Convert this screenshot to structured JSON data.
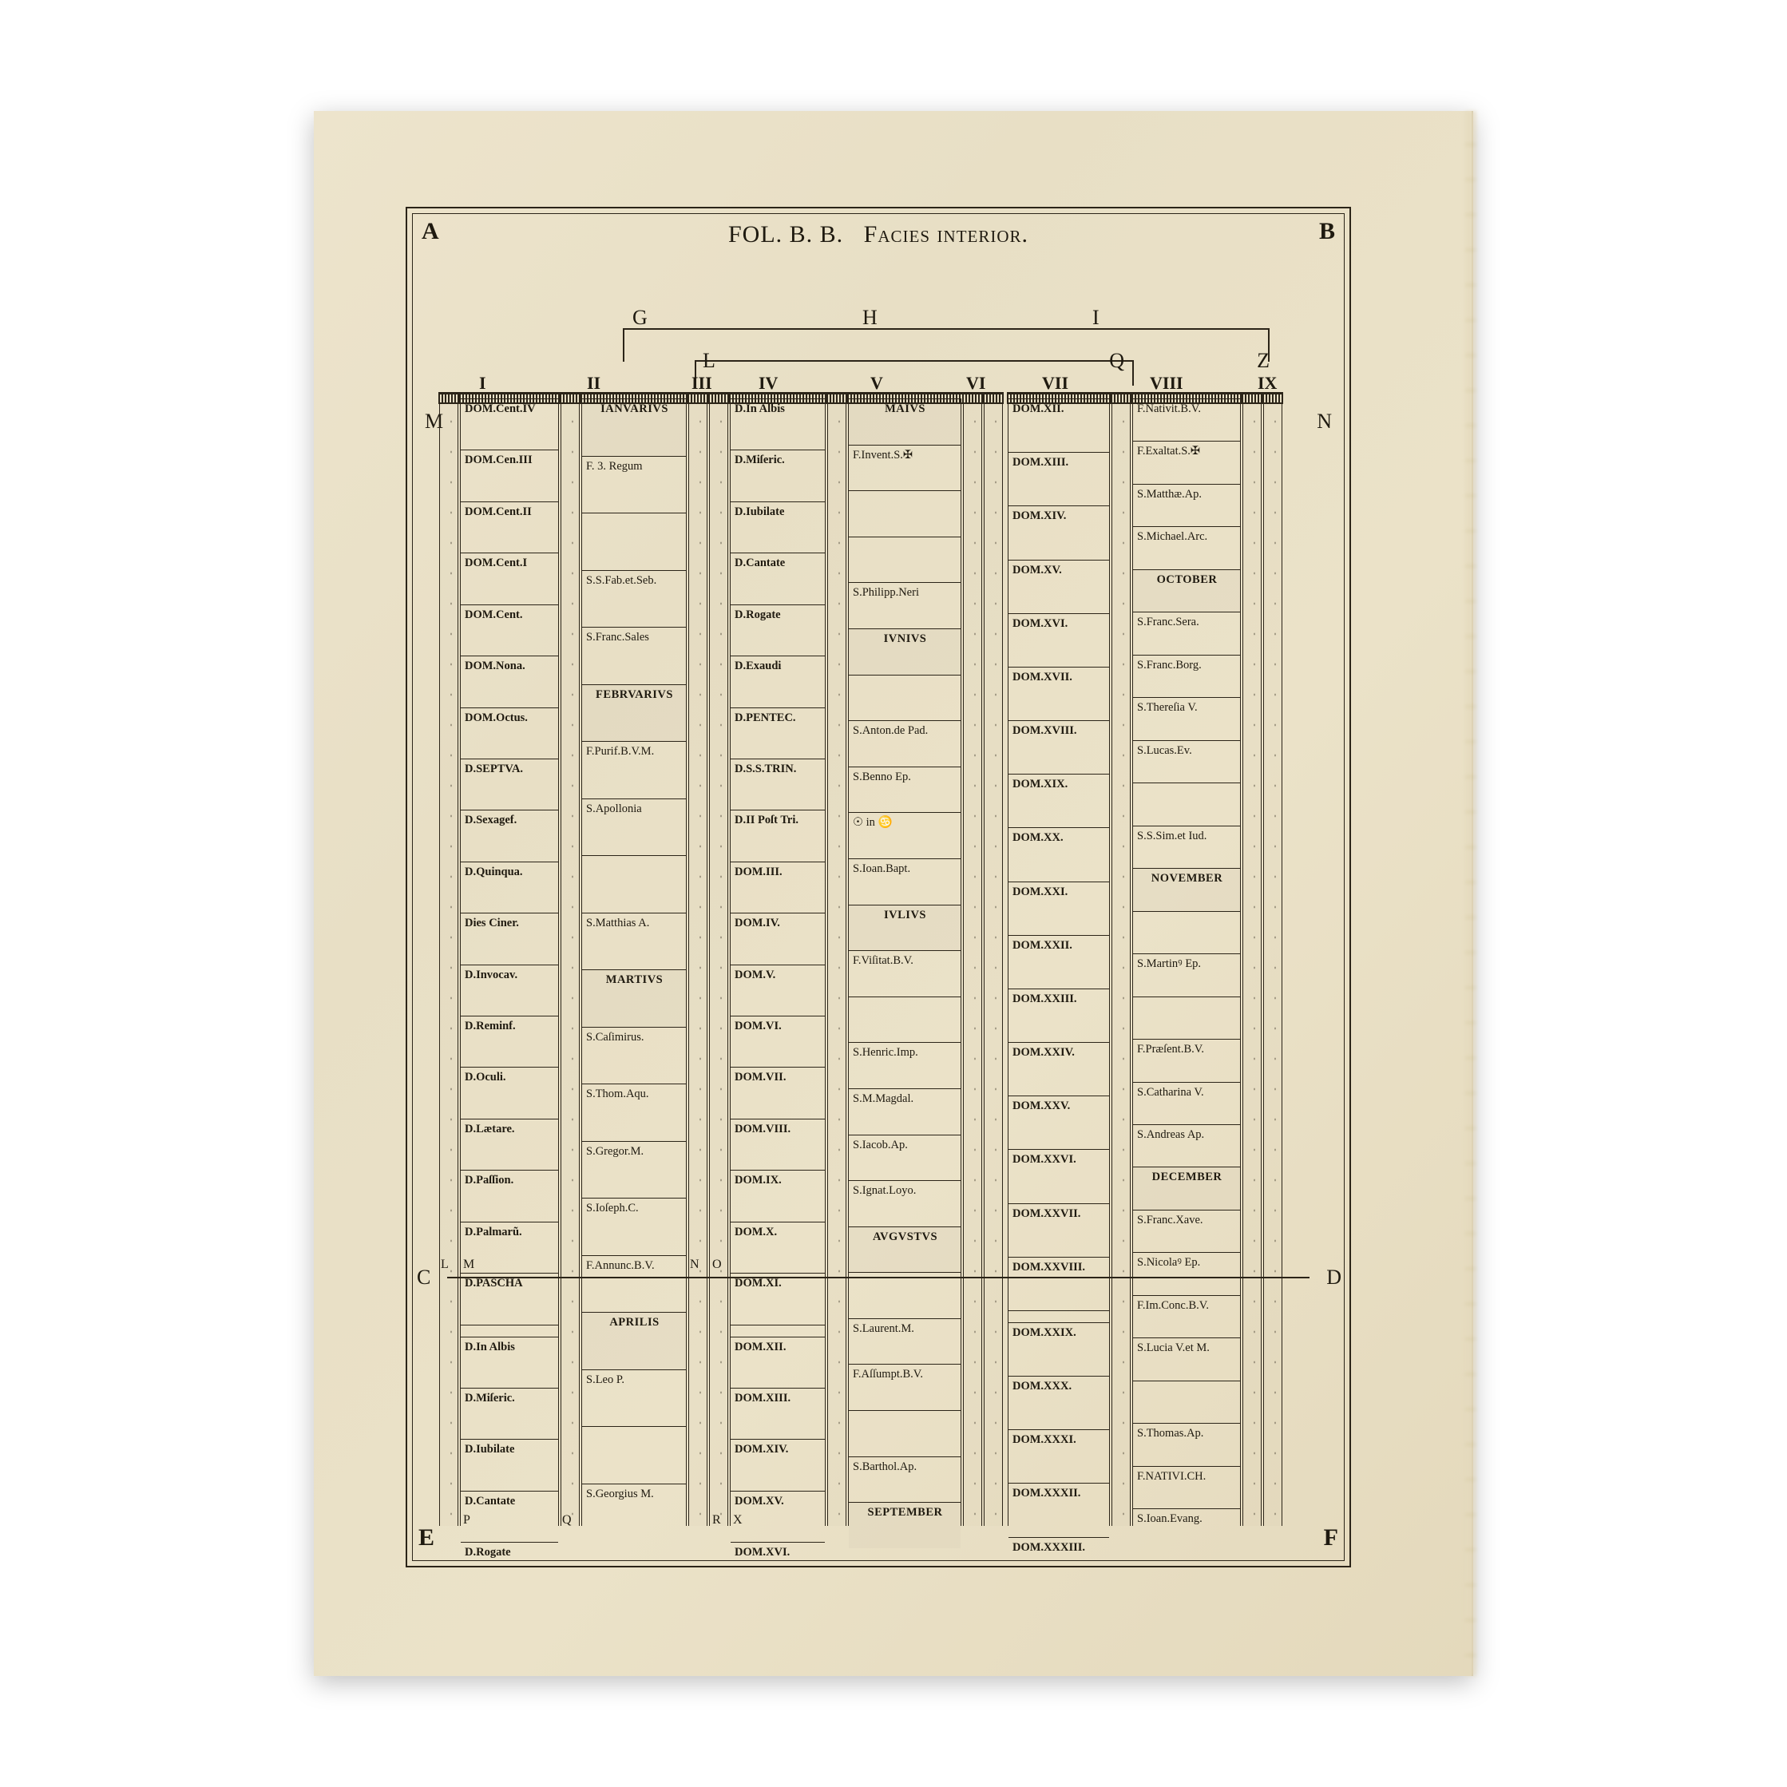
{
  "title_prefix": "FOL. B. B.",
  "title_suffix": "Facies interior.",
  "corners": {
    "A": "A",
    "B": "B",
    "C": "C",
    "D": "D",
    "E": "E",
    "F": "F"
  },
  "marks": {
    "G": "G",
    "H": "H",
    "I": "I",
    "L": "L",
    "Q": "Q",
    "Z": "Z",
    "M": "M",
    "N": "N",
    "P": "P",
    "R": "R",
    "X": "X",
    "smallL": "L",
    "smallM": "M",
    "smallN": "N",
    "smallO": "O"
  },
  "roman": [
    "I",
    "II",
    "III",
    "IV",
    "V",
    "VI",
    "VII",
    "VIII",
    "IX"
  ],
  "col1": [
    "DOM.Cent.IV",
    "DOM.Cen.III",
    "DOM.Cent.II",
    "DOM.Cent.I",
    "DOM.Cent.",
    "DOM.Nona.",
    "DOM.Octus.",
    "D.SEPTVA.",
    "D.Sexagef.",
    "D.Quinqua.",
    "Dies Ciner.",
    "D.Invocav.",
    "D.Reminf.",
    "D.Oculi.",
    "D.Lætare.",
    "D.Paſſion.",
    "D.Palmarũ.",
    "D.PASCHA"
  ],
  "col1_lower": [
    "D.In Albis",
    "D.Miſeric.",
    "D.Iubilate",
    "D.Cantate",
    "D.Rogate"
  ],
  "col2": [
    {
      "t": "IANVARIVS",
      "m": 1
    },
    {
      "t": "F. 3. Regum"
    },
    {
      "t": ""
    },
    {
      "t": "S.S.Fab.et.Seb."
    },
    {
      "t": "S.Franc.Sales"
    },
    {
      "t": "FEBRVARIVS",
      "m": 1
    },
    {
      "t": "F.Purif.B.V.M."
    },
    {
      "t": "S.Apollonia"
    },
    {
      "t": ""
    },
    {
      "t": "S.Matthias A."
    },
    {
      "t": "MARTIVS",
      "m": 1
    },
    {
      "t": "S.Caſimirus."
    },
    {
      "t": "S.Thom.Aqu."
    },
    {
      "t": "S.Gregor.M."
    },
    {
      "t": "S.Ioſeph.C."
    },
    {
      "t": "F.Annunc.B.V."
    },
    {
      "t": "APRILIS",
      "m": 1
    },
    {
      "t": "S.Leo P."
    },
    {
      "t": ""
    },
    {
      "t": "S.Georgius M."
    }
  ],
  "col4": [
    "D.In Albis",
    "D.Miſeric.",
    "D.Iubilate",
    "D.Cantate",
    "D.Rogate",
    "D.Exaudi",
    "D.PENTEC.",
    "D.S.S.TRIN.",
    "D.II Poſt Tri.",
    "DOM.III.",
    "DOM.IV.",
    "DOM.V.",
    "DOM.VI.",
    "DOM.VII.",
    "DOM.VIII.",
    "DOM.IX.",
    "DOM.X.",
    "DOM.XI."
  ],
  "col4_lower": [
    "DOM.XII.",
    "DOM.XIII.",
    "DOM.XIV.",
    "DOM.XV.",
    "DOM.XVI."
  ],
  "col5": [
    {
      "t": "MAIVS",
      "m": 1
    },
    {
      "t": "F.Invent.S.✠"
    },
    {
      "t": ""
    },
    {
      "t": ""
    },
    {
      "t": "S.Philipp.Neri"
    },
    {
      "t": "IVNIVS",
      "m": 1
    },
    {
      "t": ""
    },
    {
      "t": "S.Anton.de Pad."
    },
    {
      "t": "S.Benno Ep."
    },
    {
      "t": "☉ in ♋"
    },
    {
      "t": "S.Ioan.Bapt."
    },
    {
      "t": "IVLIVS",
      "m": 1
    },
    {
      "t": "F.Viſitat.B.V."
    },
    {
      "t": ""
    },
    {
      "t": "S.Henric.Imp."
    },
    {
      "t": "S.M.Magdal."
    },
    {
      "t": "S.Iacob.Ap."
    },
    {
      "t": "S.Ignat.Loyo."
    },
    {
      "t": "AVGVSTVS",
      "m": 1
    },
    {
      "t": ""
    },
    {
      "t": "S.Laurent.M."
    },
    {
      "t": "F.Aſſumpt.B.V."
    },
    {
      "t": ""
    },
    {
      "t": "S.Barthol.Ap."
    },
    {
      "t": "SEPTEMBER",
      "m": 1
    }
  ],
  "col7": [
    "DOM.XII.",
    "DOM.XIII.",
    "DOM.XIV.",
    "DOM.XV.",
    "DOM.XVI.",
    "DOM.XVII.",
    "DOM.XVIII.",
    "DOM.XIX.",
    "DOM.XX.",
    "DOM.XXI.",
    "DOM.XXII.",
    "DOM.XXIII.",
    "DOM.XXIV.",
    "DOM.XXV.",
    "DOM.XXVI.",
    "DOM.XXVII.",
    "DOM.XXVIII."
  ],
  "col7_lower": [
    "DOM.XXIX.",
    "DOM.XXX.",
    "DOM.XXXI.",
    "DOM.XXXII.",
    "DOM.XXXIII."
  ],
  "col8": [
    {
      "t": "F.Nativit.B.V."
    },
    {
      "t": "F.Exaltat.S.✠"
    },
    {
      "t": "S.Matthæ.Ap."
    },
    {
      "t": "S.Michael.Arc."
    },
    {
      "t": "OCTOBER",
      "m": 1
    },
    {
      "t": "S.Franc.Sera."
    },
    {
      "t": "S.Franc.Borg."
    },
    {
      "t": "S.Thereſia V."
    },
    {
      "t": "S.Lucas.Ev."
    },
    {
      "t": ""
    },
    {
      "t": "S.S.Sim.et Iud."
    },
    {
      "t": "NOVEMBER",
      "m": 1
    },
    {
      "t": ""
    },
    {
      "t": "S.Martinꝰ Ep."
    },
    {
      "t": ""
    },
    {
      "t": "F.Præſent.B.V."
    },
    {
      "t": "S.Catharina V."
    },
    {
      "t": "S.Andreas Ap."
    },
    {
      "t": "DECEMBER",
      "m": 1
    },
    {
      "t": "S.Franc.Xave."
    },
    {
      "t": "S.Nicolaꝰ Ep."
    },
    {
      "t": "F.Im.Conc.B.V."
    },
    {
      "t": "S.Lucia V.et M."
    },
    {
      "t": ""
    },
    {
      "t": "S.Thomas.Ap."
    },
    {
      "t": "F.NATIVI.CH."
    },
    {
      "t": "S.Ioan.Evang."
    }
  ]
}
